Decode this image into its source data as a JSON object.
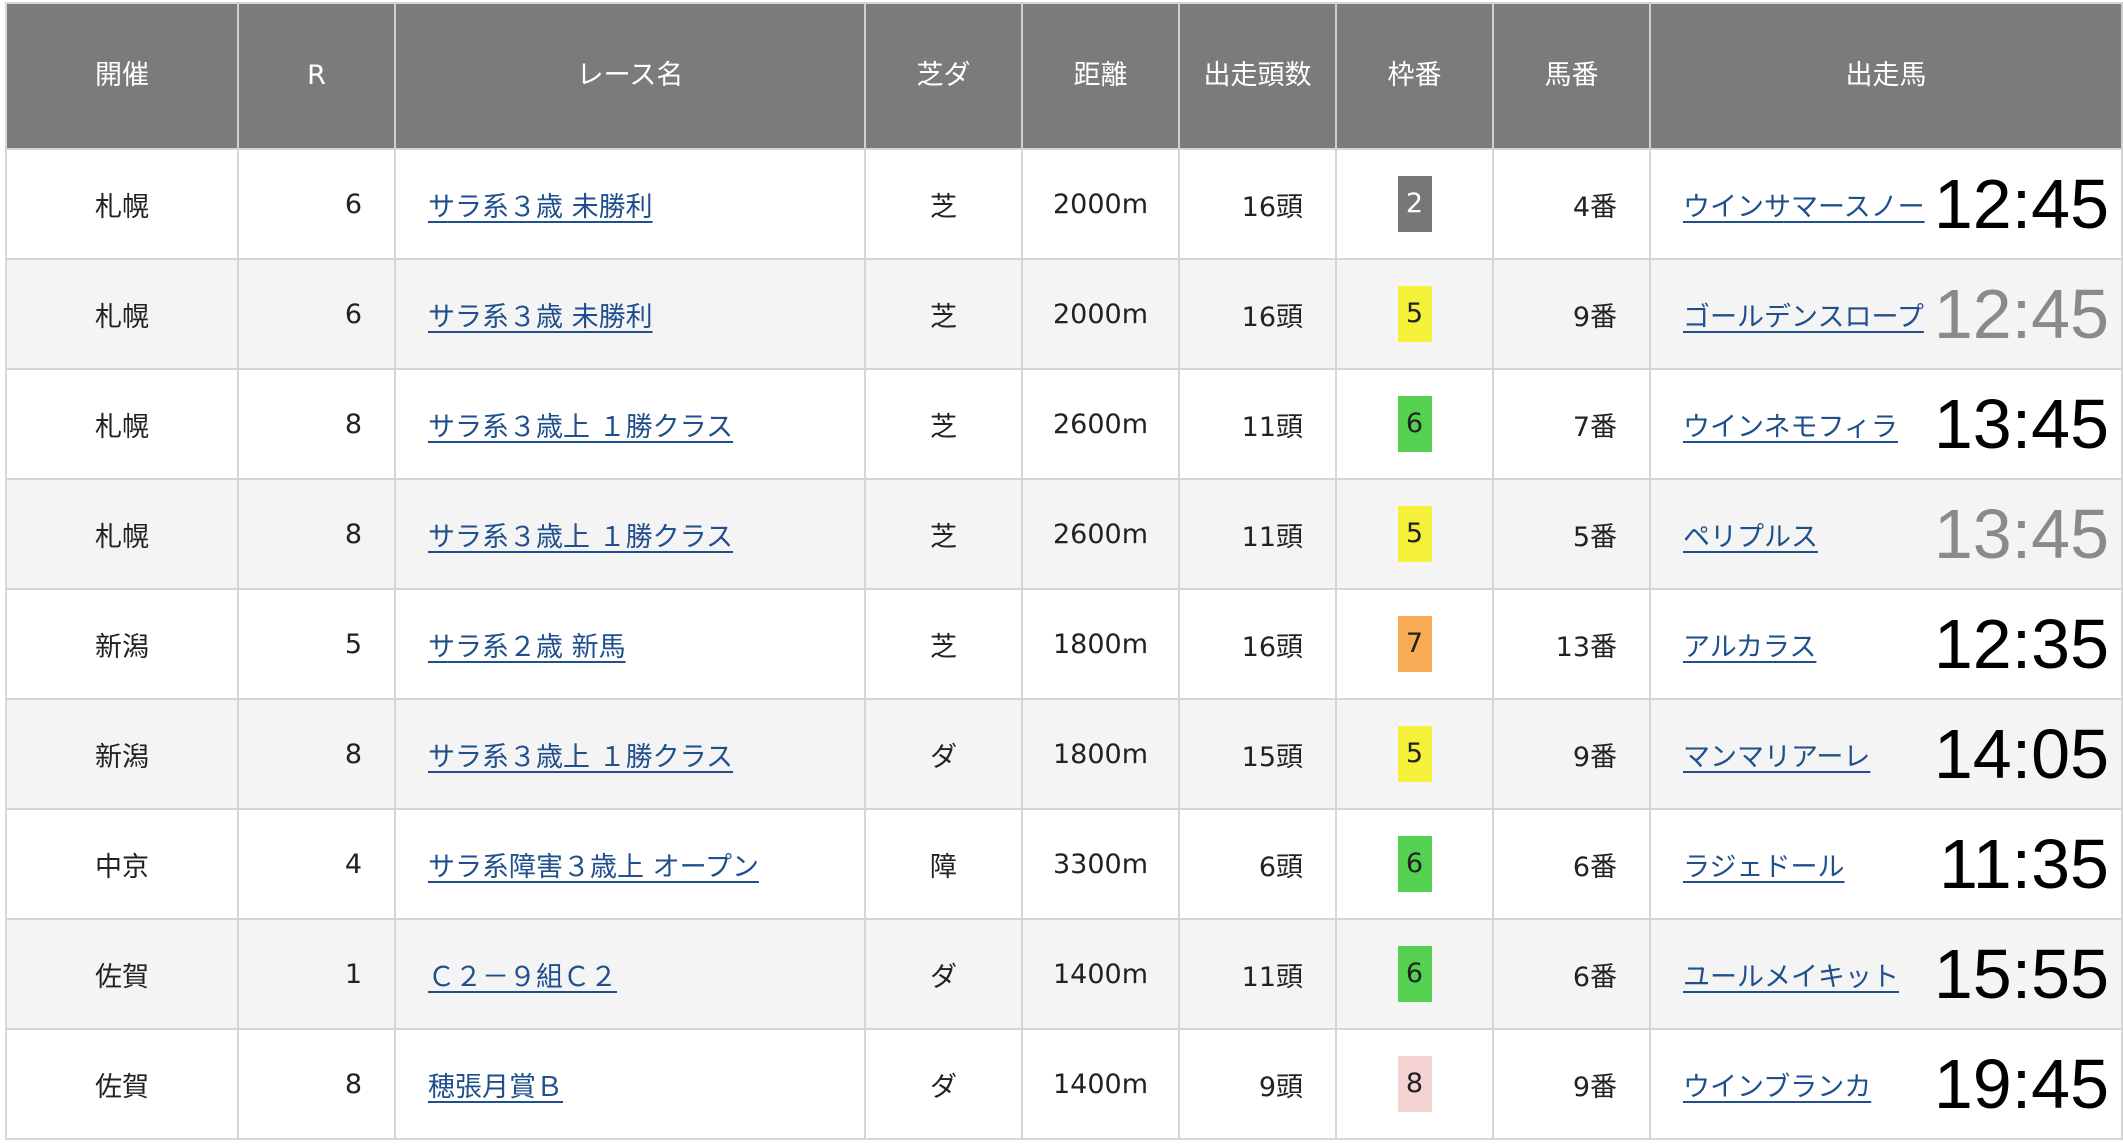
{
  "columns": [
    "開催",
    "R",
    "レース名",
    "芝ダ",
    "距離",
    "出走頭数",
    "枠番",
    "馬番",
    "出走馬"
  ],
  "frame_colors": {
    "2": {
      "bg": "#777777",
      "fg": "#ffffff"
    },
    "5": {
      "bg": "#f5f03a",
      "fg": "#222222"
    },
    "6": {
      "bg": "#55d152",
      "fg": "#222222"
    },
    "7": {
      "bg": "#f7ab54",
      "fg": "#222222"
    },
    "8": {
      "bg": "#f5d3d3",
      "fg": "#222222"
    }
  },
  "rows": [
    {
      "venue": "札幌",
      "race_no": "6",
      "race_name": "サラ系３歳 未勝利",
      "surface": "芝",
      "distance": "2000m",
      "runners": "16頭",
      "frame": "2",
      "horse_no": "4番",
      "horse": "ウインサマースノー",
      "time": "12:45",
      "time_muted": false
    },
    {
      "venue": "札幌",
      "race_no": "6",
      "race_name": "サラ系３歳 未勝利",
      "surface": "芝",
      "distance": "2000m",
      "runners": "16頭",
      "frame": "5",
      "horse_no": "9番",
      "horse": "ゴールデンスロープ",
      "time": "12:45",
      "time_muted": true
    },
    {
      "venue": "札幌",
      "race_no": "8",
      "race_name": "サラ系３歳上 １勝クラス",
      "surface": "芝",
      "distance": "2600m",
      "runners": "11頭",
      "frame": "6",
      "horse_no": "7番",
      "horse": "ウインネモフィラ",
      "time": "13:45",
      "time_muted": false
    },
    {
      "venue": "札幌",
      "race_no": "8",
      "race_name": "サラ系３歳上 １勝クラス",
      "surface": "芝",
      "distance": "2600m",
      "runners": "11頭",
      "frame": "5",
      "horse_no": "5番",
      "horse": "ペリプルス",
      "time": "13:45",
      "time_muted": true
    },
    {
      "venue": "新潟",
      "race_no": "5",
      "race_name": "サラ系２歳 新馬",
      "surface": "芝",
      "distance": "1800m",
      "runners": "16頭",
      "frame": "7",
      "horse_no": "13番",
      "horse": "アルカラス",
      "time": "12:35",
      "time_muted": false
    },
    {
      "venue": "新潟",
      "race_no": "8",
      "race_name": "サラ系３歳上 １勝クラス",
      "surface": "ダ",
      "distance": "1800m",
      "runners": "15頭",
      "frame": "5",
      "horse_no": "9番",
      "horse": "マンマリアーレ",
      "time": "14:05",
      "time_muted": false
    },
    {
      "venue": "中京",
      "race_no": "4",
      "race_name": "サラ系障害３歳上 オープン",
      "surface": "障",
      "distance": "3300m",
      "runners": "6頭",
      "frame": "6",
      "horse_no": "6番",
      "horse": "ラジェドール",
      "time": "11:35",
      "time_muted": false
    },
    {
      "venue": "佐賀",
      "race_no": "1",
      "race_name": "Ｃ２－９組Ｃ２",
      "surface": "ダ",
      "distance": "1400m",
      "runners": "11頭",
      "frame": "6",
      "horse_no": "6番",
      "horse": "ユールメイキット",
      "time": "15:55",
      "time_muted": false
    },
    {
      "venue": "佐賀",
      "race_no": "8",
      "race_name": "穂張月賞Ｂ",
      "surface": "ダ",
      "distance": "1400m",
      "runners": "9頭",
      "frame": "8",
      "horse_no": "9番",
      "horse": "ウインブランカ",
      "time": "19:45",
      "time_muted": false
    }
  ]
}
